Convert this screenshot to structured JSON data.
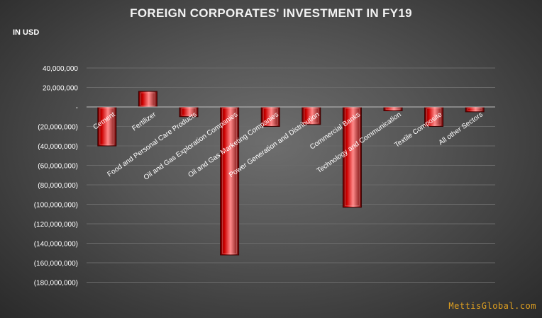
{
  "header": {
    "title": "FOREIGN CORPORATES' INVESTMENT IN FY19",
    "unit": "IN USD"
  },
  "watermark": "MettisGlobal.com",
  "colors": {
    "bar": "#cc0000",
    "bar_dark": "#6b0000",
    "bar_light": "#ff8a8a",
    "axis_text": "#ffffff",
    "gridline": "#6a6a6a",
    "zero_line": "#bfbfbf"
  },
  "chart_data": {
    "type": "bar",
    "title": "FOREIGN CORPORATES' INVESTMENT IN FY19",
    "ylabel": "IN USD",
    "xlabel": "",
    "ylim": [
      -190000000,
      40000000
    ],
    "y_ticks": [
      40000000,
      20000000,
      0,
      -20000000,
      -40000000,
      -60000000,
      -80000000,
      -100000000,
      -120000000,
      -140000000,
      -160000000,
      -180000000
    ],
    "y_tick_labels": [
      "40,000,000",
      "20,000,000",
      "-",
      "(20,000,000)",
      "(40,000,000)",
      "(60,000,000)",
      "(80,000,000)",
      "(100,000,000)",
      "(120,000,000)",
      "(140,000,000)",
      "(160,000,000)",
      "(180,000,000)"
    ],
    "grid": true,
    "legend": "none",
    "categories": [
      "Cement",
      "Fertilizer",
      "Food and Personal Care Products",
      "Oil and Gas Exploration Companies",
      "Oil and Gas Marketing Companies",
      "Power Generation and Distribution",
      "Commercial Banks",
      "Technology and Communication",
      "Textile Composite",
      "All other Sectors"
    ],
    "values": [
      -40000000,
      16000000,
      -10000000,
      -152000000,
      -20000000,
      -18000000,
      -103000000,
      -4000000,
      -20000000,
      -5000000
    ]
  }
}
